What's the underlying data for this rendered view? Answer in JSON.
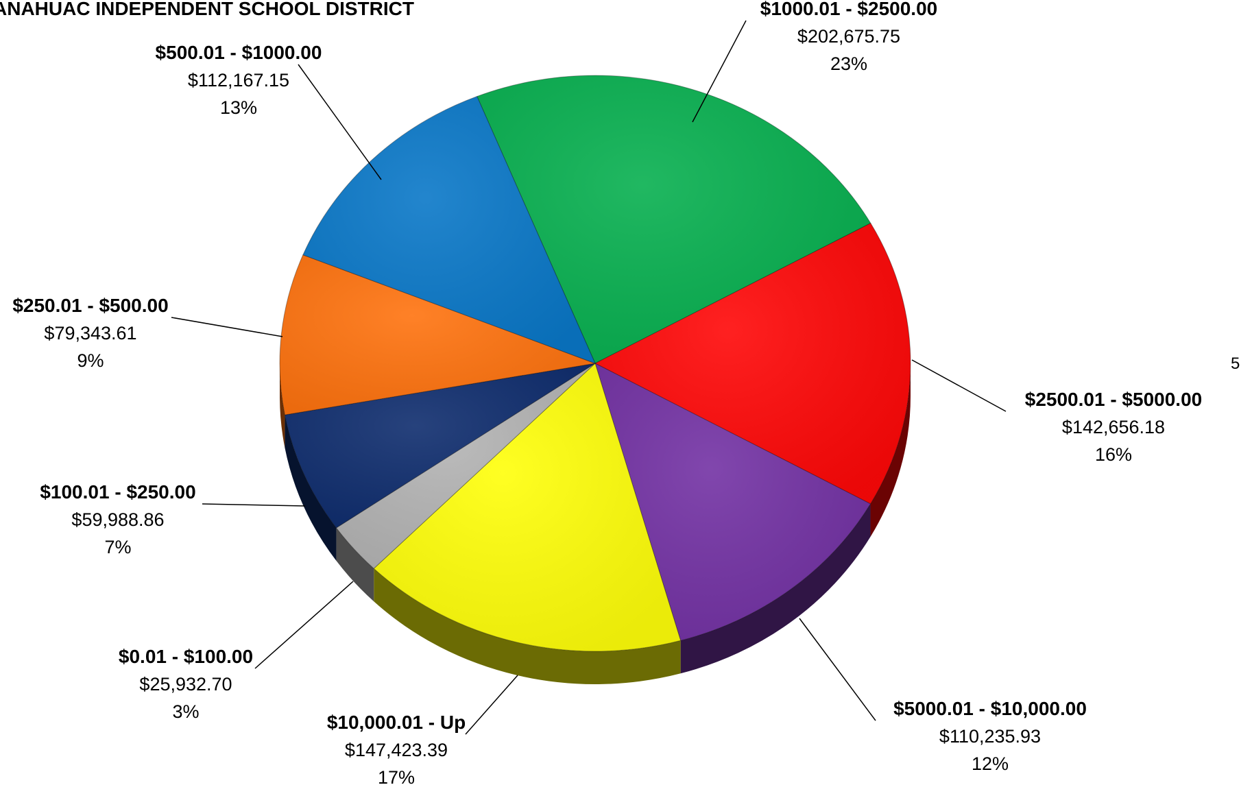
{
  "title": "ANAHUAC INDEPENDENT SCHOOL DISTRICT",
  "page_marker": "5",
  "chart_data": {
    "type": "pie",
    "title": "ANAHUAC INDEPENDENT SCHOOL DISTRICT",
    "total_label": "",
    "slices": [
      {
        "label": "$1000.01 - $2500.00",
        "value": 202675.75,
        "value_text": "$202,675.75",
        "percent": "23%",
        "color": "#08B050"
      },
      {
        "label": "$2500.01 - $5000.00",
        "value": 142656.18,
        "value_text": "$142,656.18",
        "percent": "16%",
        "color": "#FF0808"
      },
      {
        "label": "$5000.01 - $10,000.00",
        "value": 110235.93,
        "value_text": "$110,235.93",
        "percent": "12%",
        "color": "#7332A4"
      },
      {
        "label": "$10,000.01 - Up",
        "value": 147423.39,
        "value_text": "$147,423.39",
        "percent": "17%",
        "color": "#FFFF0A"
      },
      {
        "label": "$0.01 - $100.00",
        "value": 25932.7,
        "value_text": "$25,932.70",
        "percent": "3%",
        "color": "#B4B4B4"
      },
      {
        "label": "$100.01 - $250.00",
        "value": 59988.86,
        "value_text": "$59,988.86",
        "percent": "7%",
        "color": "#0F2D6E"
      },
      {
        "label": "$250.01 - $500.00",
        "value": 79343.61,
        "value_text": "$79,343.61",
        "percent": "9%",
        "color": "#FF730F"
      },
      {
        "label": "$500.01 - $1000.00",
        "value": 112167.15,
        "value_text": "$112,167.15",
        "percent": "13%",
        "color": "#0A78C8"
      }
    ]
  }
}
